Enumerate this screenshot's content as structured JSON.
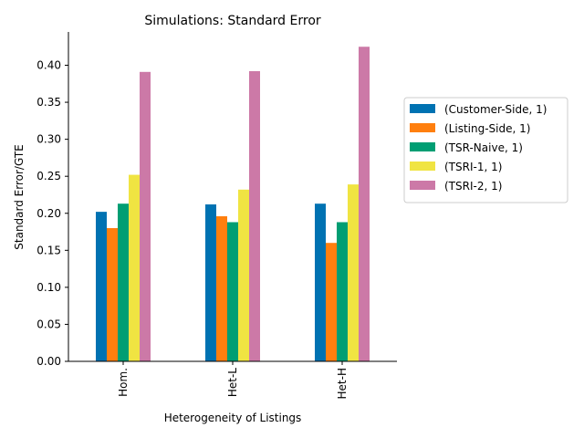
{
  "chart_data": {
    "type": "bar",
    "title": "Simulations: Standard Error",
    "xlabel": "Heterogeneity of Listings",
    "ylabel": "Standard Error/GTE",
    "categories": [
      "Hom.",
      "Het-L",
      "Het-H"
    ],
    "ylim": [
      0,
      0.445
    ],
    "yticks": [
      0.0,
      0.05,
      0.1,
      0.15,
      0.2,
      0.25,
      0.3,
      0.35,
      0.4
    ],
    "ytick_labels": [
      "0.00",
      "0.05",
      "0.10",
      "0.15",
      "0.20",
      "0.25",
      "0.30",
      "0.35",
      "0.40"
    ],
    "grid": false,
    "legend_position": "right",
    "series": [
      {
        "name": "(Customer-Side, 1)",
        "color": "#0072b2",
        "values": [
          0.202,
          0.212,
          0.213
        ]
      },
      {
        "name": "(Listing-Side, 1)",
        "color": "#ff7f0e",
        "values": [
          0.18,
          0.196,
          0.16
        ]
      },
      {
        "name": "(TSR-Naive, 1)",
        "color": "#009e73",
        "values": [
          0.213,
          0.188,
          0.188
        ]
      },
      {
        "name": "(TSRI-1, 1)",
        "color": "#f0e442",
        "values": [
          0.252,
          0.232,
          0.239
        ]
      },
      {
        "name": "(TSRI-2, 1)",
        "color": "#cc79a7",
        "values": [
          0.391,
          0.392,
          0.425
        ]
      }
    ]
  }
}
